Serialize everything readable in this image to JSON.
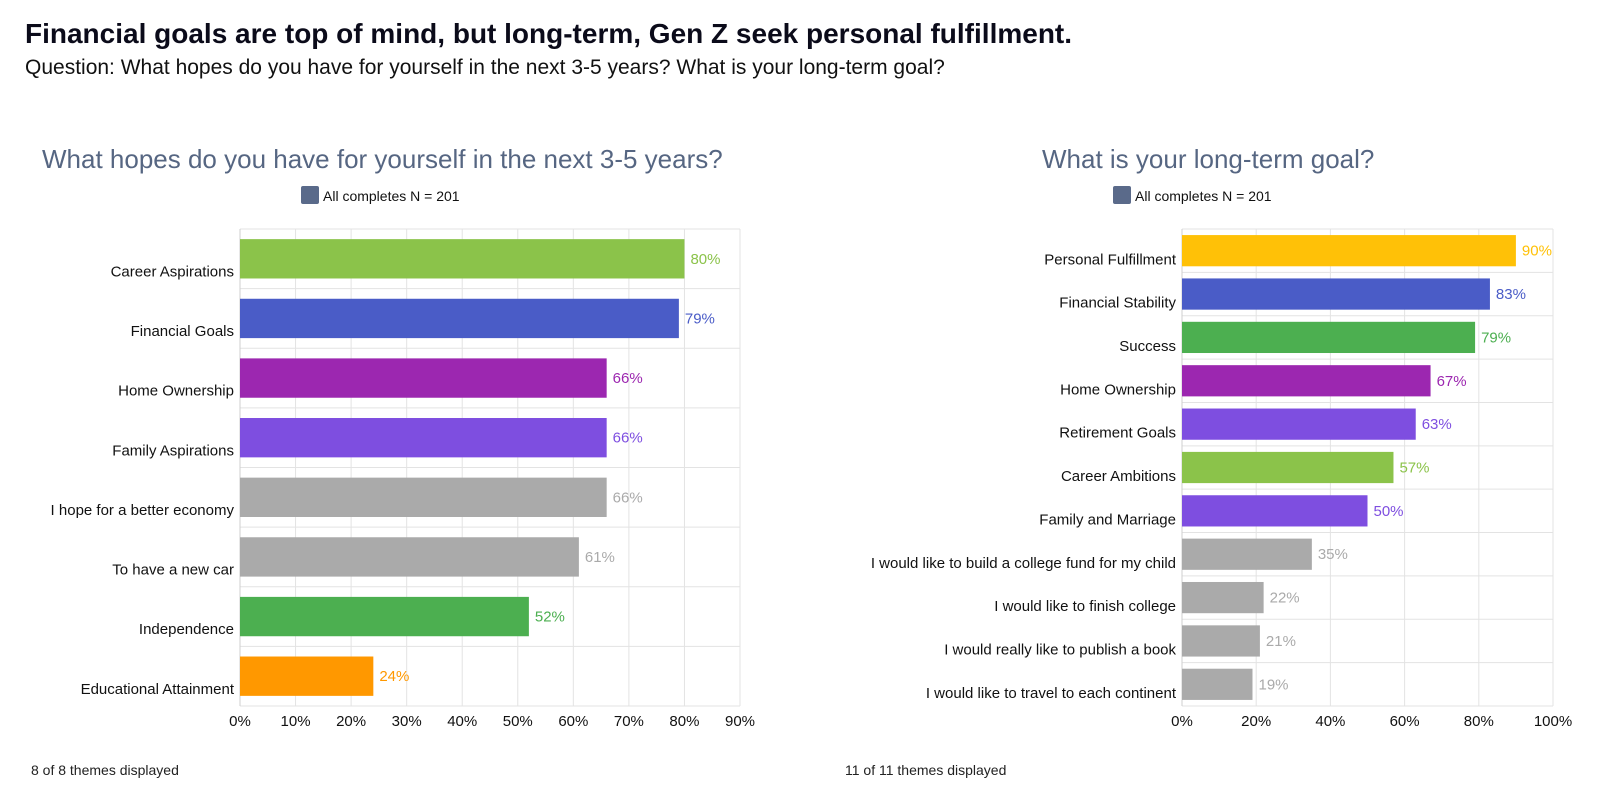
{
  "header": {
    "title": "Financial goals are top of mind, but long-term, Gen Z seek personal fulfillment.",
    "question": "Question: What hopes do you have for yourself in the next 3-5 years? What is your long-term goal?"
  },
  "chart_data": [
    {
      "type": "bar",
      "orientation": "horizontal",
      "title": "What hopes do you have for yourself in the next 3-5 years?",
      "legend": "All completes N = 201",
      "legend_color": "#5a6a8a",
      "categories": [
        "Career Aspirations",
        "Financial Goals",
        "Home Ownership",
        "Family Aspirations",
        "I hope for a better economy",
        "To have a new car",
        "Independence",
        "Educational Attainment"
      ],
      "values": [
        80,
        79,
        66,
        66,
        66,
        61,
        52,
        24
      ],
      "labels": [
        "80%",
        "79%",
        "66%",
        "66%",
        "66%",
        "61%",
        "52%",
        "24%"
      ],
      "colors": [
        "#8bc34a",
        "#4a5cc7",
        "#9c27b0",
        "#7e4ee0",
        "#aaaaaa",
        "#aaaaaa",
        "#4caf50",
        "#ff9800"
      ],
      "xlim": [
        0,
        90
      ],
      "xticks": [
        "0%",
        "10%",
        "20%",
        "30%",
        "40%",
        "50%",
        "60%",
        "70%",
        "80%",
        "90%"
      ],
      "grid": true,
      "footer": "8 of 8 themes displayed"
    },
    {
      "type": "bar",
      "orientation": "horizontal",
      "title": "What is your long-term goal?",
      "legend": "All completes N = 201",
      "legend_color": "#5a6a8a",
      "categories": [
        "Personal Fulfillment",
        "Financial Stability",
        "Success",
        "Home Ownership",
        "Retirement Goals",
        "Career Ambitions",
        "Family and Marriage",
        "I would like to build a college fund for my child",
        "I would like to finish college",
        "I would really like to publish a book",
        "I would like to travel to each continent"
      ],
      "values": [
        90,
        83,
        79,
        67,
        63,
        57,
        50,
        35,
        22,
        21,
        19
      ],
      "labels": [
        "90%",
        "83%",
        "79%",
        "67%",
        "63%",
        "57%",
        "50%",
        "35%",
        "22%",
        "21%",
        "19%"
      ],
      "colors": [
        "#ffc107",
        "#4a5cc7",
        "#4caf50",
        "#9c27b0",
        "#7e4ee0",
        "#8bc34a",
        "#7e4ee0",
        "#aaaaaa",
        "#aaaaaa",
        "#aaaaaa",
        "#aaaaaa"
      ],
      "xlim": [
        0,
        100
      ],
      "xticks": [
        "0%",
        "20%",
        "40%",
        "60%",
        "80%",
        "100%"
      ],
      "grid": true,
      "footer": "11 of 11 themes displayed"
    }
  ]
}
